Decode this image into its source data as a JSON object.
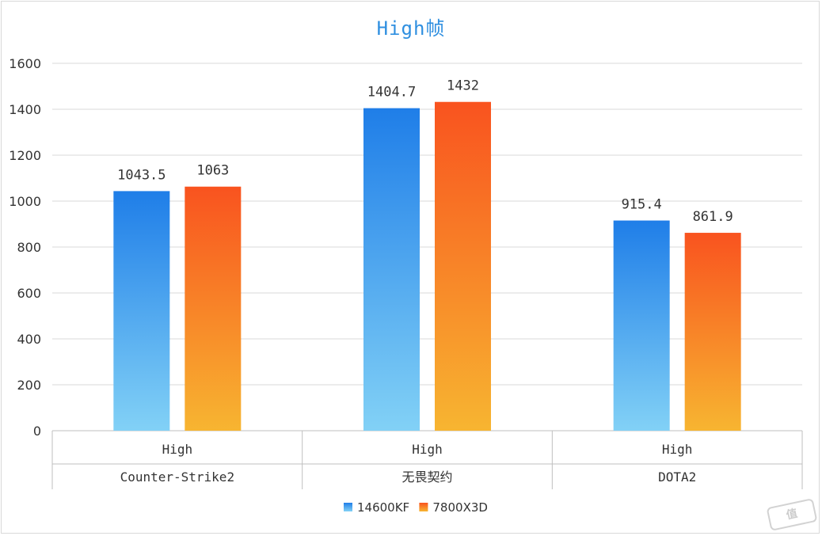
{
  "chart_data": {
    "type": "bar",
    "title": "High帧",
    "xlabel": "",
    "ylabel": "",
    "ylim": [
      0,
      1600
    ],
    "yticks": [
      0,
      200,
      400,
      600,
      800,
      1000,
      1200,
      1400,
      1600
    ],
    "grid": true,
    "legend_position": "bottom",
    "categories": [
      {
        "setting": "High",
        "game": "Counter-Strike2"
      },
      {
        "setting": "High",
        "game": "无畏契约"
      },
      {
        "setting": "High",
        "game": "DOTA2"
      }
    ],
    "series": [
      {
        "name": "14600KF",
        "values": [
          1043.5,
          1404.7,
          915.4
        ],
        "labels": [
          "1043.5",
          "1404.7",
          "915.4"
        ],
        "color_top": "#1f7ee8",
        "color_bottom": "#82d1f6"
      },
      {
        "name": "7800X3D",
        "values": [
          1063,
          1432,
          861.9
        ],
        "labels": [
          "1063",
          "1432",
          "861.9"
        ],
        "color_top": "#f9531f",
        "color_bottom": "#f7b531"
      }
    ]
  },
  "colors": {
    "title": "#2f8fe0",
    "grid": "#d9d9d9",
    "text": "#333333"
  }
}
